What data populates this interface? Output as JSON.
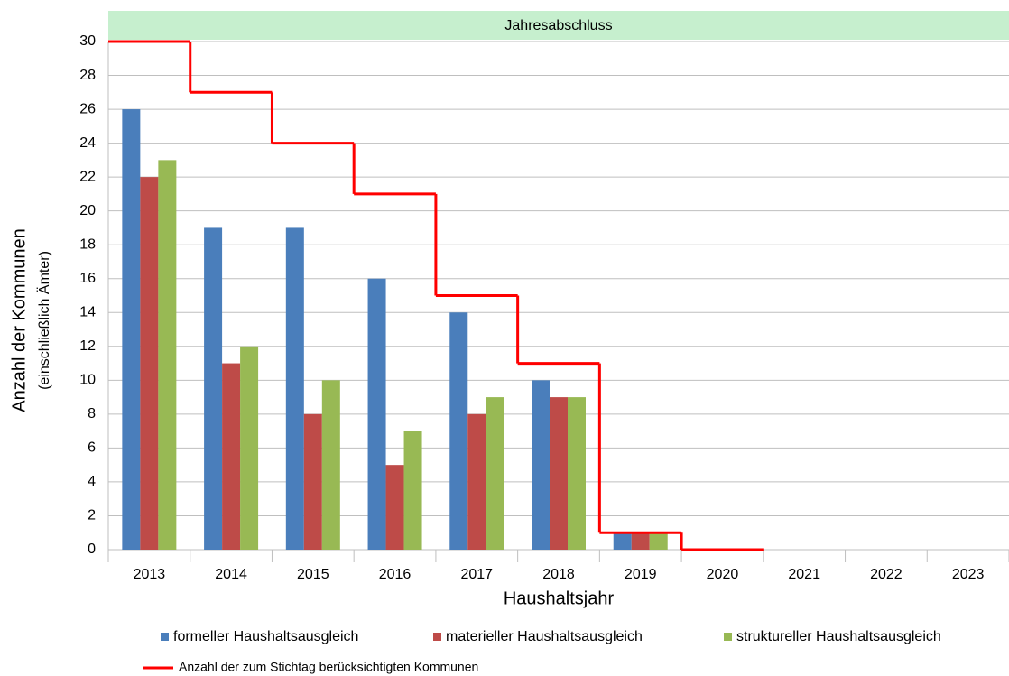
{
  "chart_data": {
    "type": "bar",
    "banner": "Jahresabschluss",
    "ylabel": [
      "Anzahl der Kommunen",
      "(einschließlich Ämter)"
    ],
    "xlabel": "Haushaltsjahr",
    "categories": [
      "2013",
      "2014",
      "2015",
      "2016",
      "2017",
      "2018",
      "2019",
      "2020",
      "2021",
      "2022",
      "2023"
    ],
    "series": [
      {
        "name": "formeller Haushaltsausgleich",
        "color": "#4a7ebb",
        "values": [
          26,
          19,
          19,
          16,
          14,
          10,
          1,
          null,
          null,
          null,
          null
        ]
      },
      {
        "name": "materieller Haushaltsausgleich",
        "color": "#be4b48",
        "values": [
          22,
          11,
          8,
          5,
          8,
          9,
          1,
          null,
          null,
          null,
          null
        ]
      },
      {
        "name": "struktureller Haushaltsausgleich",
        "color": "#98b954",
        "values": [
          23,
          12,
          10,
          7,
          9,
          9,
          1,
          null,
          null,
          null,
          null
        ]
      },
      {
        "name": "Anzahl der zum Stichtag berücksichtigten Kommunen",
        "color": "#ff0000",
        "type": "step",
        "values": [
          30,
          27,
          24,
          21,
          15,
          11,
          1,
          0,
          null,
          null,
          null
        ]
      }
    ],
    "ylim": [
      0,
      30
    ],
    "yticks": [
      0,
      2,
      4,
      6,
      8,
      10,
      12,
      14,
      16,
      18,
      20,
      22,
      24,
      26,
      28,
      30
    ],
    "grid": true
  }
}
